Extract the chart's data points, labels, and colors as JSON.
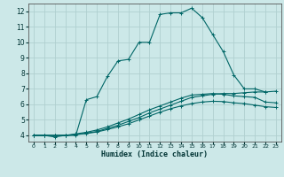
{
  "bg_color": "#cce8e8",
  "grid_color": "#b0d0d0",
  "line_color": "#006666",
  "xlabel": "Humidex (Indice chaleur)",
  "xlim": [
    -0.5,
    23.5
  ],
  "ylim": [
    3.6,
    12.5
  ],
  "xticks": [
    0,
    1,
    2,
    3,
    4,
    5,
    6,
    7,
    8,
    9,
    10,
    11,
    12,
    13,
    14,
    15,
    16,
    17,
    18,
    19,
    20,
    21,
    22,
    23
  ],
  "yticks": [
    4,
    5,
    6,
    7,
    8,
    9,
    10,
    11,
    12
  ],
  "line1_x": [
    0,
    1,
    2,
    3,
    4,
    5,
    6,
    7,
    8,
    9,
    10,
    11,
    12,
    13,
    14,
    15,
    16,
    17,
    18,
    19,
    20,
    21,
    22
  ],
  "line1_y": [
    4.0,
    4.0,
    3.9,
    4.0,
    4.0,
    6.3,
    6.5,
    7.8,
    8.8,
    8.9,
    10.0,
    10.0,
    11.8,
    11.9,
    11.9,
    12.2,
    11.6,
    10.5,
    9.4,
    7.9,
    7.0,
    7.0,
    6.8
  ],
  "line2_x": [
    0,
    1,
    2,
    3,
    4,
    5,
    6,
    7,
    8,
    9,
    10,
    11,
    12,
    13,
    14,
    15,
    16,
    17,
    18,
    19,
    20,
    21,
    22,
    23
  ],
  "line2_y": [
    4.0,
    4.0,
    4.0,
    4.0,
    4.05,
    4.15,
    4.25,
    4.45,
    4.65,
    4.9,
    5.15,
    5.45,
    5.7,
    5.95,
    6.2,
    6.45,
    6.55,
    6.65,
    6.7,
    6.7,
    6.75,
    6.8,
    6.8,
    6.85
  ],
  "line3_x": [
    0,
    1,
    2,
    3,
    4,
    5,
    6,
    7,
    8,
    9,
    10,
    11,
    12,
    13,
    14,
    15,
    16,
    17,
    18,
    19,
    20,
    21,
    22,
    23
  ],
  "line3_y": [
    4.0,
    4.0,
    4.0,
    4.0,
    4.1,
    4.2,
    4.35,
    4.55,
    4.8,
    5.05,
    5.35,
    5.65,
    5.9,
    6.15,
    6.4,
    6.6,
    6.65,
    6.7,
    6.65,
    6.55,
    6.5,
    6.45,
    6.15,
    6.1
  ],
  "line4_x": [
    0,
    1,
    2,
    3,
    4,
    5,
    6,
    7,
    8,
    9,
    10,
    11,
    12,
    13,
    14,
    15,
    16,
    17,
    18,
    19,
    20,
    21,
    22,
    23
  ],
  "line4_y": [
    4.0,
    4.0,
    4.0,
    4.0,
    4.05,
    4.12,
    4.22,
    4.38,
    4.55,
    4.75,
    5.0,
    5.25,
    5.5,
    5.72,
    5.9,
    6.05,
    6.15,
    6.2,
    6.18,
    6.1,
    6.05,
    5.95,
    5.85,
    5.8
  ]
}
